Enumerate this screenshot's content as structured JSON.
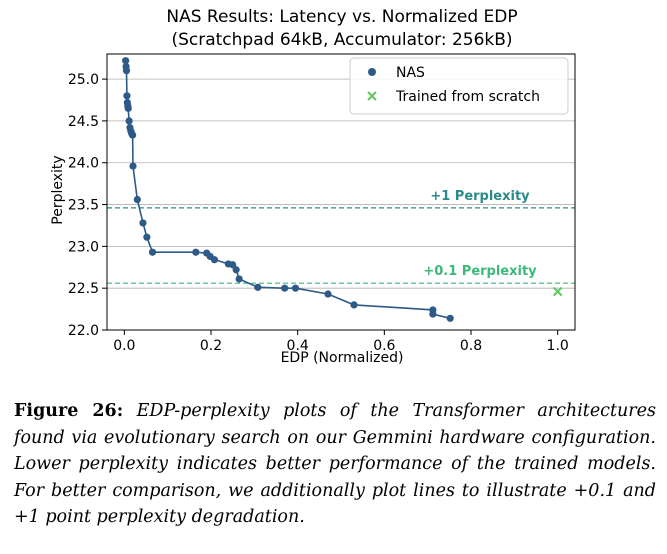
{
  "chart_data": {
    "type": "scatter",
    "title": "NAS Results: Latency vs. Normalized EDP",
    "subtitle": "(Scratchpad 64kB, Accumulator: 256kB)",
    "xlabel": "EDP (Normalized)",
    "ylabel": "Perplexity",
    "xlim": [
      -0.04,
      1.04
    ],
    "ylim": [
      22.0,
      25.3
    ],
    "xticks": [
      0.0,
      0.2,
      0.4,
      0.6,
      0.8,
      1.0
    ],
    "xtick_labels": [
      "0.0",
      "0.2",
      "0.4",
      "0.6",
      "0.8",
      "1.0"
    ],
    "yticks": [
      22.0,
      22.5,
      23.0,
      23.5,
      24.0,
      24.5,
      25.0
    ],
    "ytick_labels": [
      "22.0",
      "22.5",
      "23.0",
      "23.5",
      "24.0",
      "24.5",
      "25.0"
    ],
    "grid": "horizontal",
    "legend_position": "top-right",
    "series": [
      {
        "name": "NAS",
        "marker": "circle",
        "color": "#2e5a88",
        "connected": true,
        "points": [
          [
            0.003,
            25.22
          ],
          [
            0.004,
            25.15
          ],
          [
            0.005,
            25.1
          ],
          [
            0.006,
            24.8
          ],
          [
            0.007,
            24.72
          ],
          [
            0.008,
            24.68
          ],
          [
            0.009,
            24.65
          ],
          [
            0.011,
            24.5
          ],
          [
            0.013,
            24.42
          ],
          [
            0.015,
            24.38
          ],
          [
            0.017,
            24.35
          ],
          [
            0.019,
            24.33
          ],
          [
            0.02,
            23.96
          ],
          [
            0.03,
            23.56
          ],
          [
            0.043,
            23.28
          ],
          [
            0.052,
            23.11
          ],
          [
            0.065,
            22.93
          ],
          [
            0.165,
            22.93
          ],
          [
            0.19,
            22.92
          ],
          [
            0.198,
            22.88
          ],
          [
            0.208,
            22.84
          ],
          [
            0.24,
            22.79
          ],
          [
            0.25,
            22.78
          ],
          [
            0.258,
            22.72
          ],
          [
            0.265,
            22.61
          ],
          [
            0.308,
            22.51
          ],
          [
            0.37,
            22.5
          ],
          [
            0.395,
            22.5
          ],
          [
            0.47,
            22.43
          ],
          [
            0.53,
            22.3
          ],
          [
            0.712,
            22.24
          ],
          [
            0.712,
            22.19
          ],
          [
            0.752,
            22.14
          ]
        ]
      },
      {
        "name": "Trained from scratch",
        "marker": "x",
        "color": "#5cc75c",
        "connected": false,
        "points": [
          [
            1.0,
            22.46
          ]
        ]
      }
    ],
    "reference_lines": [
      {
        "y": 23.46,
        "label": "+1 Perplexity",
        "color": "#2a8a8a"
      },
      {
        "y": 22.56,
        "label": "+0.1 Perplexity",
        "color": "#3cba7a"
      }
    ]
  },
  "caption": {
    "label": "Figure 26:",
    "text": "EDP-perplexity plots of the Transformer architectures found via evolutionary search on our Gemmini hardware configuration. Lower perplexity indicates better performance of the trained models. For better comparison, we additionally plot lines to illustrate +0.1 and +1 point perplexity degradation."
  }
}
